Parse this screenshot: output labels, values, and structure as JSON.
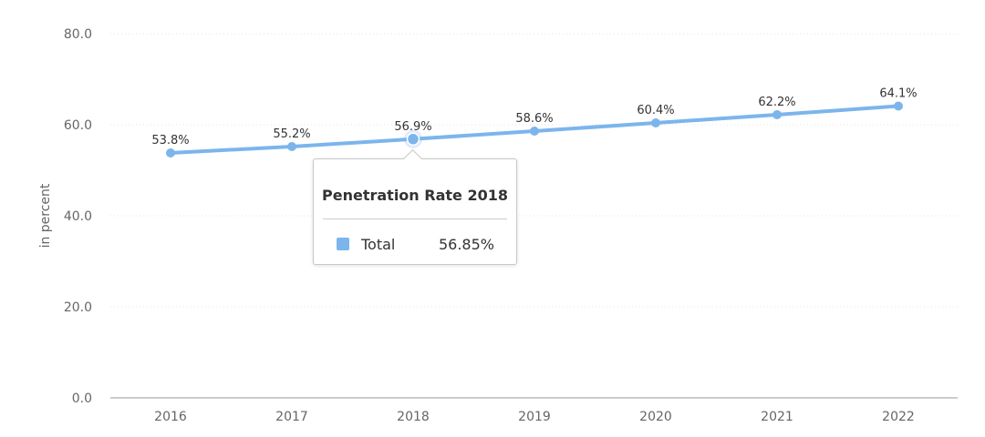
{
  "chart_data": {
    "type": "line",
    "categories": [
      "2016",
      "2017",
      "2018",
      "2019",
      "2020",
      "2021",
      "2022"
    ],
    "series": [
      {
        "name": "Total",
        "color": "#7cb5ec",
        "values": [
          53.8,
          55.2,
          56.85,
          58.6,
          60.4,
          62.2,
          64.1
        ],
        "data_labels": [
          "53.8%",
          "55.2%",
          "56.9%",
          "58.6%",
          "60.4%",
          "62.2%",
          "64.1%"
        ]
      }
    ],
    "ylabel": "in percent",
    "ylim": [
      0,
      80
    ],
    "yticks": [
      "0.0",
      "20.0",
      "40.0",
      "60.0",
      "80.0"
    ],
    "grid": true,
    "highlighted_index": 2
  },
  "tooltip": {
    "title": "Penetration Rate 2018",
    "series_name": "Total",
    "value": "56.85%",
    "swatch_color": "#7cb5ec"
  }
}
